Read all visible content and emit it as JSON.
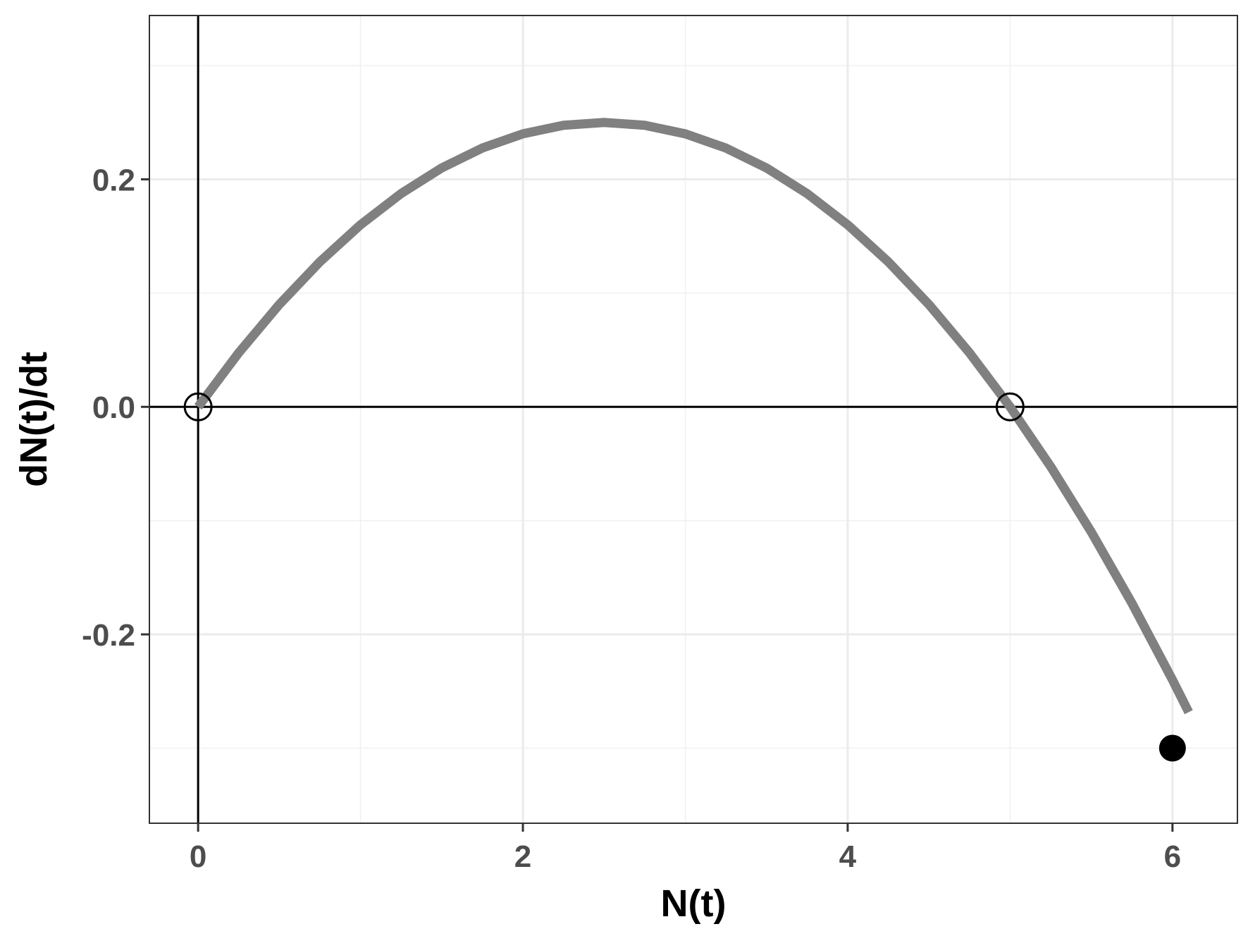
{
  "chart_data": {
    "type": "line",
    "title": "",
    "xlabel": "N(t)",
    "ylabel": "dN(t)/dt",
    "xlim": [
      -0.3,
      6.4
    ],
    "ylim": [
      -0.366,
      0.344
    ],
    "x_ticks": [
      0,
      2,
      4,
      6
    ],
    "x_tick_labels": [
      "0",
      "2",
      "4",
      "6"
    ],
    "y_ticks": [
      -0.2,
      0.0,
      0.2
    ],
    "y_tick_labels": [
      "-0.2",
      "0.0",
      "0.2"
    ],
    "x_minor_gridlines": [
      1,
      3,
      5
    ],
    "y_minor_gridlines": [
      -0.3,
      -0.1,
      0.1,
      0.3
    ],
    "grid": true,
    "reference_lines": {
      "hline_y": 0,
      "vline_x": 0
    },
    "curve": {
      "color": "#808080",
      "x": [
        0,
        0.25,
        0.5,
        0.75,
        1,
        1.25,
        1.5,
        1.75,
        2,
        2.25,
        2.5,
        2.75,
        3,
        3.25,
        3.5,
        3.75,
        4,
        4.25,
        4.5,
        4.75,
        5,
        5.25,
        5.5,
        5.75,
        6,
        6.1
      ],
      "y": [
        0,
        0.0475,
        0.09,
        0.1275,
        0.16,
        0.1875,
        0.21,
        0.2275,
        0.24,
        0.2475,
        0.25,
        0.2475,
        0.24,
        0.2275,
        0.21,
        0.1875,
        0.16,
        0.1275,
        0.09,
        0.0475,
        0,
        -0.0525,
        -0.11,
        -0.1725,
        -0.24,
        -0.2684
      ]
    },
    "points": [
      {
        "x": 0,
        "y": 0,
        "style": "open"
      },
      {
        "x": 5,
        "y": 0,
        "style": "open"
      },
      {
        "x": 6,
        "y": -0.3,
        "style": "filled"
      }
    ]
  }
}
